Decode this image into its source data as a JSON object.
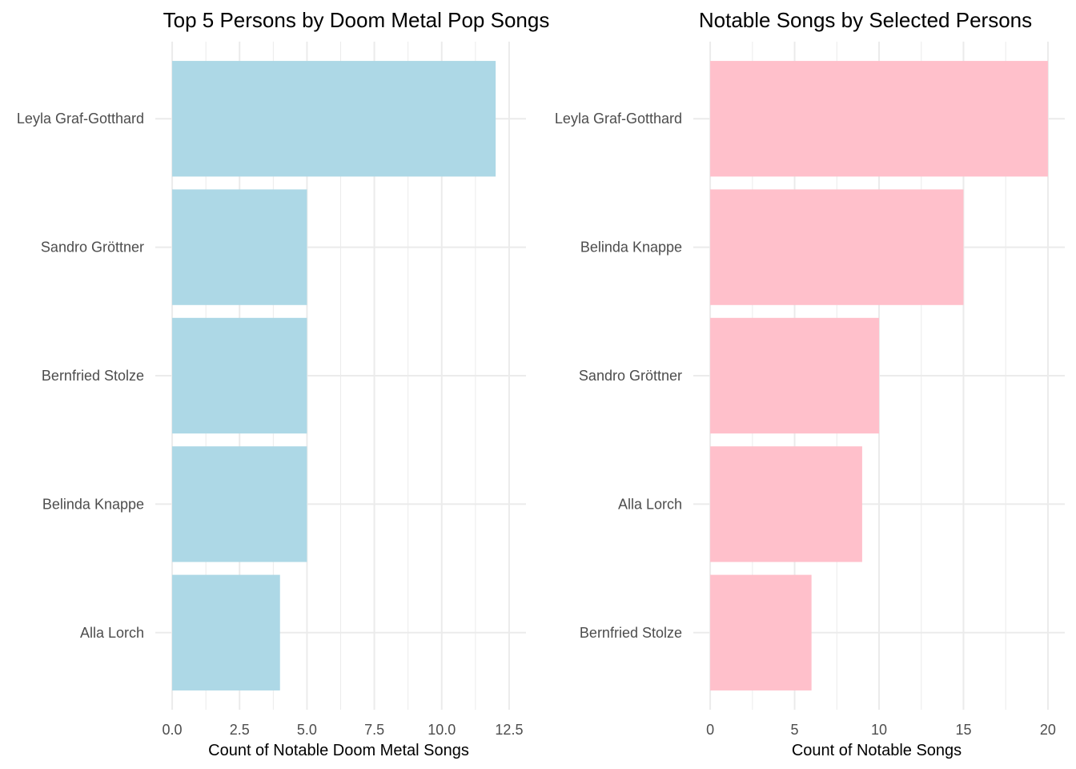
{
  "chart_data": [
    {
      "type": "bar",
      "orientation": "horizontal",
      "title": "Top 5 Persons by Doom Metal Pop Songs",
      "xlabel": "Count of Notable Doom Metal Songs",
      "ylabel": "",
      "categories": [
        "Leyla Graf-Gotthard",
        "Sandro Gröttner",
        "Bernfried Stolze",
        "Belinda Knappe",
        "Alla Lorch"
      ],
      "values": [
        12,
        5,
        5,
        5,
        4
      ],
      "xlim": [
        0,
        12.5
      ],
      "xticks": [
        "0.0",
        "2.5",
        "5.0",
        "7.5",
        "10.0",
        "12.5"
      ],
      "bar_color": "#ADD8E6",
      "grid": true,
      "legend": "none"
    },
    {
      "type": "bar",
      "orientation": "horizontal",
      "title": "Notable Songs by Selected Persons",
      "xlabel": "Count of Notable Songs",
      "ylabel": "",
      "categories": [
        "Leyla Graf-Gotthard",
        "Belinda Knappe",
        "Sandro Gröttner",
        "Alla Lorch",
        "Bernfried Stolze"
      ],
      "values": [
        20,
        15,
        10,
        9,
        6
      ],
      "xlim": [
        0,
        20
      ],
      "xticks": [
        "0",
        "5",
        "10",
        "15",
        "20"
      ],
      "bar_color": "#FFC0CB",
      "grid": true,
      "legend": "none"
    }
  ]
}
